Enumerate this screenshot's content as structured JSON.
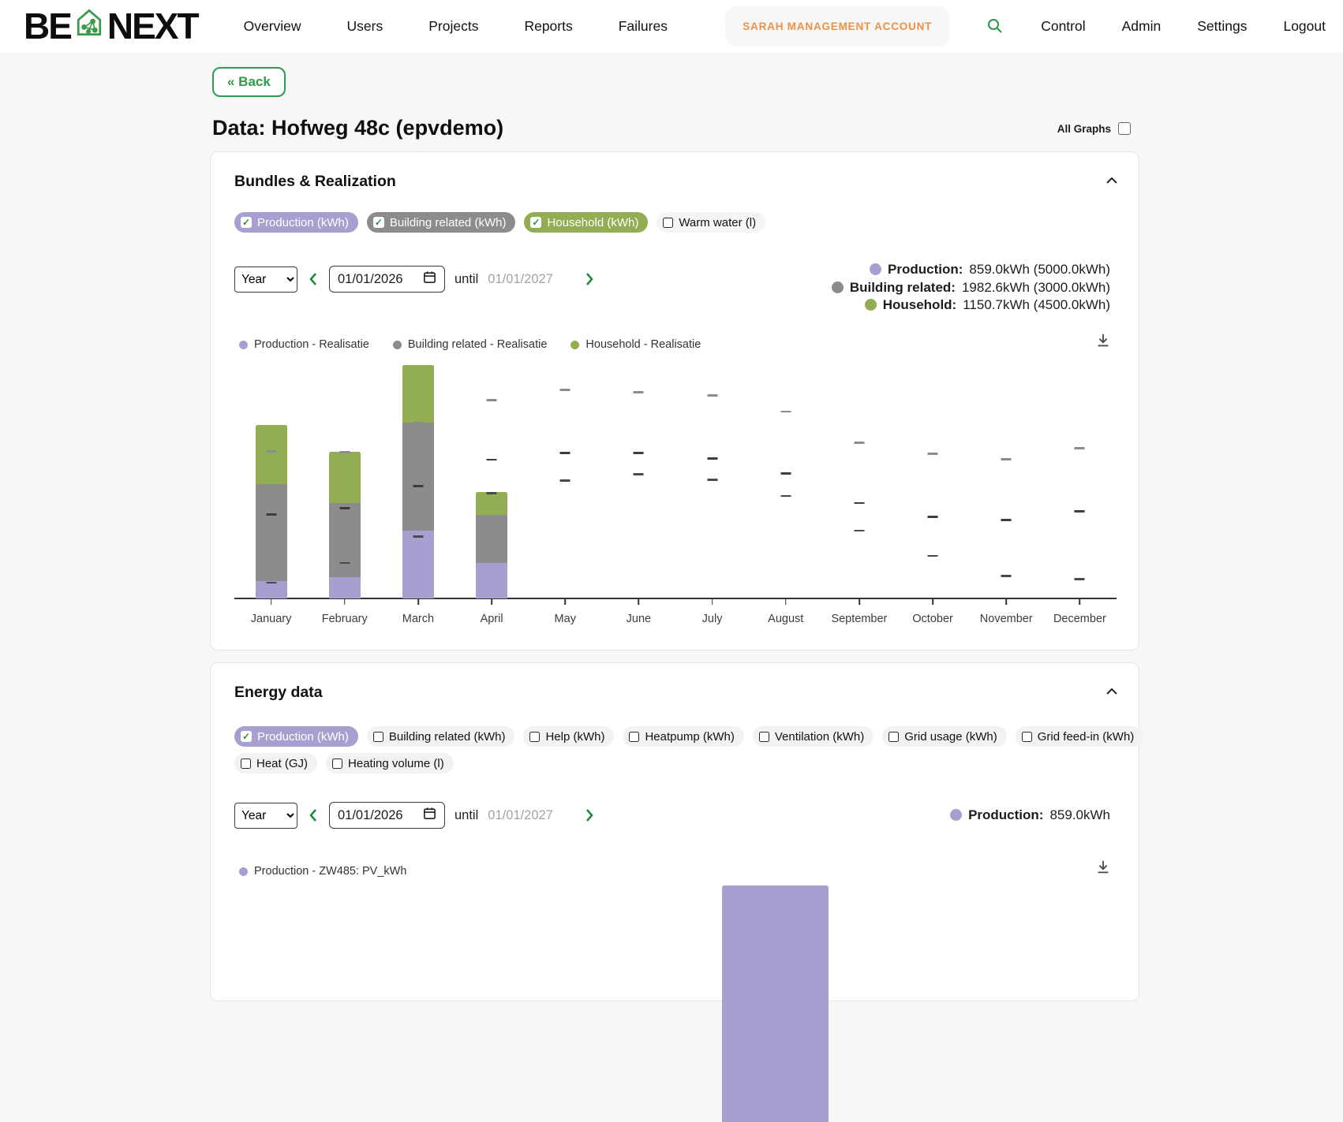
{
  "colors": {
    "purple": "#a6a0d0",
    "gray": "#8c8c8c",
    "green": "#93ae52",
    "accent_green": "#2f9c49",
    "orange": "#ef9142",
    "muted": "#a3a3a3"
  },
  "icons": {
    "check": "✓"
  },
  "navbar": {
    "logo_text_1": "BE",
    "logo_text_2": "NEXT",
    "links": [
      "Overview",
      "Users",
      "Projects",
      "Reports",
      "Failures"
    ],
    "account_label": "SARAH MANAGEMENT ACCOUNT",
    "right_links": [
      "Control",
      "Admin",
      "Settings",
      "Logout"
    ]
  },
  "toolbar": {
    "back_label": "« Back",
    "page_title": "Data: Hofweg 48c (epvdemo)",
    "all_graphs_label": "All Graphs",
    "all_graphs_checked": false
  },
  "bundles_card": {
    "title": "Bundles & Realization",
    "chips": [
      {
        "label": "Production (kWh)",
        "checked": true,
        "bg": "#a6a0d0",
        "text": "#ffffff"
      },
      {
        "label": "Building related (kWh)",
        "checked": true,
        "bg": "#8c8c8c",
        "text": "#ffffff"
      },
      {
        "label": "Household (kWh)",
        "checked": true,
        "bg": "#93ae52",
        "text": "#ffffff"
      },
      {
        "label": "Warm water (l)",
        "checked": false,
        "bg": "#f5f5f5",
        "text": "#111111"
      }
    ],
    "controls": {
      "period": "Year",
      "date_from": "01/01/2026",
      "until_label": "until",
      "date_to": "01/01/2027"
    },
    "totals": [
      {
        "label": "Production:",
        "value": "859.0kWh",
        "target": "(5000.0kWh)",
        "color": "#a6a0d0"
      },
      {
        "label": "Building related:",
        "value": "1982.6kWh",
        "target": "(3000.0kWh)",
        "color": "#8c8c8c"
      },
      {
        "label": "Household:",
        "value": "1150.7kWh",
        "target": "(4500.0kWh)",
        "color": "#93ae52"
      }
    ],
    "legend": [
      {
        "label": "Production - Realisatie",
        "color": "#a6a0d0"
      },
      {
        "label": "Building related - Realisatie",
        "color": "#8c8c8c"
      },
      {
        "label": "Household - Realisatie",
        "color": "#93ae52"
      }
    ]
  },
  "energy_card": {
    "title": "Energy data",
    "chips_row1": [
      {
        "label": "Production (kWh)",
        "checked": true,
        "bg": "#a6a0d0",
        "text": "#ffffff"
      },
      {
        "label": "Building related (kWh)",
        "checked": false,
        "bg": "#f2f2f2",
        "text": "#111111"
      },
      {
        "label": "Help (kWh)",
        "checked": false,
        "bg": "#f2f2f2",
        "text": "#111111"
      },
      {
        "label": "Heatpump (kWh)",
        "checked": false,
        "bg": "#f2f2f2",
        "text": "#111111"
      },
      {
        "label": "Ventilation (kWh)",
        "checked": false,
        "bg": "#f2f2f2",
        "text": "#111111"
      },
      {
        "label": "Grid usage (kWh)",
        "checked": false,
        "bg": "#f2f2f2",
        "text": "#111111"
      },
      {
        "label": "Grid feed-in (kWh)",
        "checked": false,
        "bg": "#f2f2f2",
        "text": "#111111"
      }
    ],
    "chips_row2": [
      {
        "label": "Heat (GJ)",
        "checked": false,
        "bg": "#f2f2f2",
        "text": "#111111"
      },
      {
        "label": "Heating volume (l)",
        "checked": false,
        "bg": "#f2f2f2",
        "text": "#111111"
      }
    ],
    "controls": {
      "period": "Year",
      "date_from": "01/01/2026",
      "until_label": "until",
      "date_to": "01/01/2027"
    },
    "totals": [
      {
        "label": "Production:",
        "value": "859.0kWh",
        "target": "",
        "color": "#a6a0d0"
      }
    ],
    "legend": [
      {
        "label": "Production - ZW485: PV_kWh",
        "color": "#a6a0d0"
      }
    ]
  },
  "chart_data": [
    {
      "type": "bar",
      "stacked": true,
      "title": "Bundles & Realization — monthly realisation vs bundle targets",
      "categories": [
        "January",
        "February",
        "March",
        "April",
        "May",
        "June",
        "July",
        "August",
        "September",
        "October",
        "November",
        "December"
      ],
      "series": [
        {
          "name": "Production - Realisatie",
          "color": "#a6a0d0",
          "values": [
            105,
            127,
            410,
            217,
            0,
            0,
            0,
            0,
            0,
            0,
            0,
            0
          ]
        },
        {
          "name": "Building related - Realisatie",
          "color": "#8c8c8c",
          "values": [
            588,
            450,
            655,
            290,
            0,
            0,
            0,
            0,
            0,
            0,
            0,
            0
          ]
        },
        {
          "name": "Household - Realisatie",
          "color": "#93ae52",
          "values": [
            357,
            310,
            348,
            136,
            0,
            0,
            0,
            0,
            0,
            0,
            0,
            0
          ]
        }
      ],
      "target_markers_kwh": [
        [
          96,
          508,
          890
        ],
        [
          214,
          547,
          884
        ],
        [
          375,
          680,
          1062
        ],
        [
          638,
          840,
          1201
        ],
        [
          713,
          880,
          1262
        ],
        [
          750,
          880,
          1248
        ],
        [
          718,
          848,
          1229
        ],
        [
          620,
          755,
          1131
        ],
        [
          411,
          578,
          941
        ],
        [
          257,
          494,
          876
        ],
        [
          136,
          476,
          843
        ],
        [
          118,
          527,
          908
        ]
      ],
      "marker_colors": [
        "#4a4a4a",
        "#3d3d3d",
        "#8c8c8c"
      ],
      "xlabel": "",
      "ylabel": "",
      "unit": "kWh",
      "ylim": [
        0,
        1450
      ],
      "y_axis_labels_visible": false,
      "grid": false,
      "legend_position": "top-left"
    },
    {
      "type": "bar",
      "title": "Energy data — Production (partially visible, bar cut off by viewport)",
      "categories": [
        "2026"
      ],
      "series": [
        {
          "name": "Production - ZW485: PV_kWh",
          "color": "#a6a0d0",
          "values": [
            859.0
          ]
        }
      ],
      "unit": "kWh",
      "legend_position": "top-left"
    }
  ]
}
